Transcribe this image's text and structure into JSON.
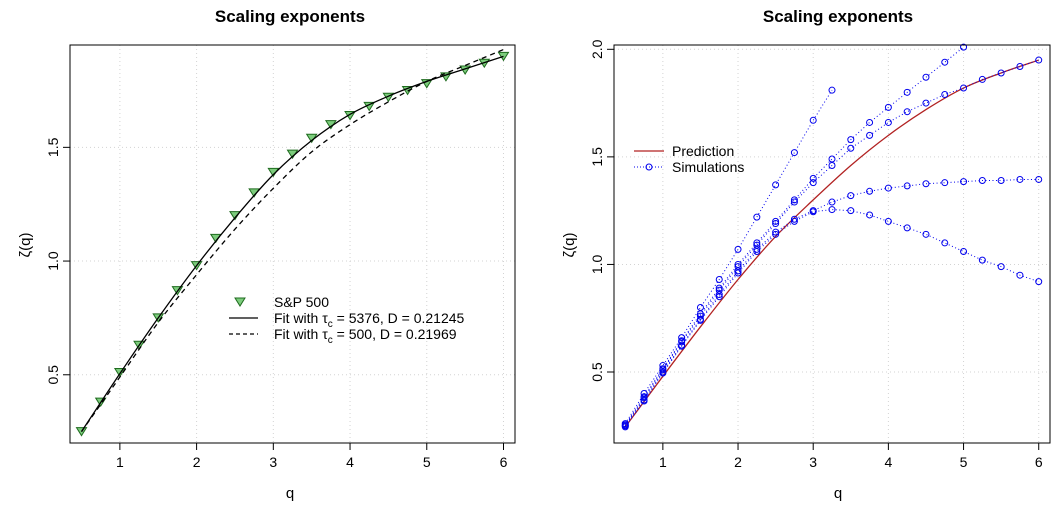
{
  "chart_data": [
    {
      "type": "scatter",
      "title": "Scaling exponents",
      "xlabel": "q",
      "ylabel": "ζ(q)",
      "xlim": [
        0.35,
        6.15
      ],
      "ylim": [
        0.2,
        1.95
      ],
      "xticks": [
        "1",
        "2",
        "3",
        "4",
        "5",
        "6"
      ],
      "yticks": [
        "0.5",
        "1.0",
        "1.5"
      ],
      "grid": true,
      "legend_position": "center-right",
      "series": [
        {
          "name": "S&P 500",
          "kind": "points",
          "marker": "triangle-down",
          "color": "#2e8b2e",
          "x": [
            0.5,
            0.75,
            1.0,
            1.25,
            1.5,
            1.75,
            2.0,
            2.25,
            2.5,
            2.75,
            3.0,
            3.25,
            3.5,
            3.75,
            4.0,
            4.25,
            4.5,
            4.75,
            5.0,
            5.25,
            5.5,
            5.75,
            6.0
          ],
          "y": [
            0.25,
            0.38,
            0.51,
            0.63,
            0.75,
            0.87,
            0.98,
            1.1,
            1.2,
            1.3,
            1.39,
            1.47,
            1.54,
            1.6,
            1.64,
            1.68,
            1.72,
            1.75,
            1.78,
            1.81,
            1.84,
            1.87,
            1.9
          ]
        },
        {
          "name": "Fit with ",
          "name_tau": "τ",
          "name_sub": "c",
          "name_rest": " = 5376, D = 0.21245",
          "kind": "line",
          "dash": "solid",
          "color": "#000000",
          "x": [
            0.5,
            1.0,
            1.5,
            2.0,
            2.5,
            3.0,
            3.5,
            4.0,
            4.5,
            5.0,
            5.5,
            6.0
          ],
          "y": [
            0.25,
            0.505,
            0.75,
            0.98,
            1.19,
            1.38,
            1.53,
            1.645,
            1.725,
            1.79,
            1.845,
            1.9
          ]
        },
        {
          "name": "Fit with  ",
          "name_tau": "τ",
          "name_sub": "c",
          "name_rest": " = 500, D = 0.21969",
          "kind": "line",
          "dash": "dashed",
          "color": "#000000",
          "x": [
            0.5,
            1.0,
            1.5,
            2.0,
            2.5,
            3.0,
            3.5,
            4.0,
            4.5,
            5.0,
            5.5,
            6.0
          ],
          "y": [
            0.25,
            0.49,
            0.73,
            0.94,
            1.14,
            1.32,
            1.48,
            1.6,
            1.7,
            1.79,
            1.86,
            1.93
          ]
        }
      ]
    },
    {
      "type": "scatter",
      "title": "Scaling exponents",
      "xlabel": "q",
      "ylabel": "ζ(q)",
      "xlim": [
        0.35,
        6.15
      ],
      "ylim": [
        0.17,
        2.02
      ],
      "xticks": [
        "1",
        "2",
        "3",
        "4",
        "5",
        "6"
      ],
      "yticks": [
        "0.5",
        "1.0",
        "1.5",
        "2.0"
      ],
      "grid": true,
      "legend_position": "top-left",
      "series": [
        {
          "name": "Prediction",
          "kind": "line",
          "dash": "solid",
          "color": "#b22222",
          "x": [
            0.5,
            1.0,
            1.5,
            2.0,
            2.5,
            3.0,
            3.5,
            4.0,
            4.5,
            5.0,
            5.5,
            6.0
          ],
          "y": [
            0.245,
            0.48,
            0.71,
            0.93,
            1.13,
            1.3,
            1.46,
            1.6,
            1.72,
            1.82,
            1.89,
            1.95
          ]
        },
        {
          "name": "Simulations",
          "kind": "points-dotted",
          "marker": "circle",
          "color": "#0000ee",
          "runs": [
            {
              "x": [
                0.5,
                0.75,
                1.0,
                1.25,
                1.5,
                1.75,
                2.0,
                2.25,
                2.5,
                2.75,
                3.0,
                3.25
              ],
              "y": [
                0.26,
                0.4,
                0.53,
                0.66,
                0.8,
                0.93,
                1.07,
                1.22,
                1.37,
                1.52,
                1.67,
                1.81
              ]
            },
            {
              "x": [
                0.5,
                0.75,
                1.0,
                1.25,
                1.5,
                1.75,
                2.0,
                2.25,
                2.5,
                2.75,
                3.0,
                3.25,
                3.5,
                3.75,
                4.0,
                4.25,
                4.5,
                4.75,
                5.0
              ],
              "y": [
                0.255,
                0.385,
                0.515,
                0.645,
                0.77,
                0.89,
                1.0,
                1.1,
                1.2,
                1.3,
                1.4,
                1.49,
                1.58,
                1.66,
                1.73,
                1.8,
                1.87,
                1.94,
                2.01
              ]
            },
            {
              "x": [
                0.5,
                0.75,
                1.0,
                1.25,
                1.5,
                1.75,
                2.0,
                2.25,
                2.5,
                2.75,
                3.0,
                3.25,
                3.5,
                3.75,
                4.0,
                4.25,
                4.5,
                4.75,
                5.0,
                5.25,
                5.5,
                5.75,
                6.0
              ],
              "y": [
                0.25,
                0.38,
                0.51,
                0.64,
                0.76,
                0.88,
                0.99,
                1.09,
                1.19,
                1.29,
                1.38,
                1.46,
                1.54,
                1.6,
                1.66,
                1.71,
                1.75,
                1.79,
                1.82,
                1.86,
                1.89,
                1.92,
                1.95
              ]
            },
            {
              "x": [
                0.5,
                0.75,
                1.0,
                1.25,
                1.5,
                1.75,
                2.0,
                2.25,
                2.5,
                2.75,
                3.0,
                3.25,
                3.5,
                3.75,
                4.0,
                4.25,
                4.5,
                4.75,
                5.0,
                5.25,
                5.5,
                5.75,
                6.0
              ],
              "y": [
                0.25,
                0.37,
                0.5,
                0.625,
                0.745,
                0.86,
                0.97,
                1.07,
                1.15,
                1.21,
                1.25,
                1.29,
                1.32,
                1.34,
                1.355,
                1.365,
                1.375,
                1.38,
                1.385,
                1.39,
                1.39,
                1.395,
                1.395
              ]
            },
            {
              "x": [
                0.5,
                0.75,
                1.0,
                1.25,
                1.5,
                1.75,
                2.0,
                2.25,
                2.5,
                2.75,
                3.0,
                3.25,
                3.5,
                3.75,
                4.0,
                4.25,
                4.5,
                4.75,
                5.0,
                5.25,
                5.5,
                5.75,
                6.0
              ],
              "y": [
                0.245,
                0.365,
                0.495,
                0.62,
                0.74,
                0.85,
                0.96,
                1.06,
                1.14,
                1.2,
                1.245,
                1.255,
                1.25,
                1.23,
                1.2,
                1.17,
                1.14,
                1.1,
                1.06,
                1.02,
                0.99,
                0.95,
                0.92
              ]
            }
          ]
        }
      ]
    }
  ]
}
